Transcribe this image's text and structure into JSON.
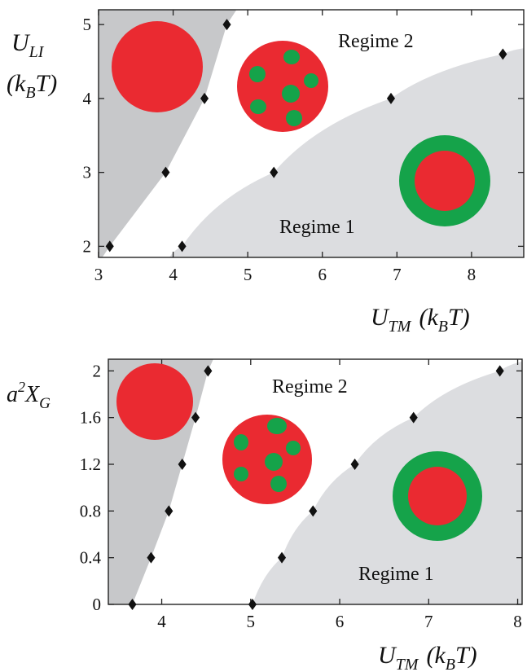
{
  "colors": {
    "region_dark": "#c7c8ca",
    "region_light": "#dcdde0",
    "red": "#ea2a31",
    "green": "#15a34a",
    "marker": "#111111",
    "axis": "#222222"
  },
  "chart_data": [
    {
      "type": "scatter",
      "xlabel": {
        "main": "U",
        "sub": "TM",
        "unit": "(k",
        "unit_sub": "B",
        "unit_end": "T)"
      },
      "ylabel": {
        "line1_main": "U",
        "line1_sub": "LI",
        "line2": "(k",
        "line2_sub": "B",
        "line2_end": "T)"
      },
      "xlim": [
        3,
        8.7
      ],
      "ylim": [
        1.85,
        5.2
      ],
      "xticks": [
        3,
        4,
        5,
        6,
        7,
        8
      ],
      "xtick_labels": [
        "3",
        "4",
        "5",
        "6",
        "7",
        "8"
      ],
      "yticks": [
        2,
        3,
        4,
        5
      ],
      "ytick_labels": [
        "2",
        "3",
        "4",
        "5"
      ],
      "regions": [
        {
          "name": "uniform",
          "icon": "red-filled-circle-icon",
          "boundary": [
            [
              3.05,
              1.85
            ],
            [
              3.15,
              2
            ],
            [
              3.9,
              3
            ],
            [
              4.42,
              4
            ],
            [
              4.72,
              5
            ],
            [
              4.85,
              5.2
            ]
          ]
        },
        {
          "name": "core-shell",
          "icon": "red-core-green-shell-icon",
          "boundary": [
            [
              3.95,
              1.85
            ],
            [
              4.12,
              2
            ],
            [
              5.35,
              3
            ],
            [
              6.92,
              4
            ],
            [
              8.42,
              4.6
            ],
            [
              8.7,
              4.68
            ]
          ]
        }
      ],
      "series": [
        {
          "x": [
            3.15,
            3.9,
            4.42,
            4.72
          ],
          "y": [
            2,
            3,
            4,
            5
          ]
        },
        {
          "x": [
            4.12,
            5.35,
            6.92,
            8.42
          ],
          "y": [
            2,
            3,
            4,
            4.6
          ]
        }
      ],
      "annotations": [
        "Regime 2",
        "Regime 1"
      ]
    },
    {
      "type": "scatter",
      "xlabel": {
        "main": "U",
        "sub": "TM",
        "unit": "(k",
        "unit_sub": "B",
        "unit_end": "T)"
      },
      "ylabel": {
        "main": "a",
        "sup": "2",
        "rest": "X",
        "sub": "G"
      },
      "xlim": [
        3.4,
        8.05
      ],
      "ylim": [
        0,
        2.1
      ],
      "xticks": [
        4,
        5,
        6,
        7,
        8
      ],
      "xtick_labels": [
        "4",
        "5",
        "6",
        "7",
        "8"
      ],
      "yticks": [
        0,
        0.4,
        0.8,
        1.2,
        1.6,
        2
      ],
      "ytick_labels": [
        "0",
        "0.4",
        "0.8",
        "1.2",
        "1.6",
        "2"
      ],
      "regions": [
        {
          "name": "uniform",
          "icon": "red-filled-circle-icon",
          "boundary": [
            [
              3.67,
              0
            ],
            [
              3.88,
              0.4
            ],
            [
              4.08,
              0.8
            ],
            [
              4.23,
              1.2
            ],
            [
              4.38,
              1.6
            ],
            [
              4.52,
              2
            ],
            [
              4.58,
              2.1
            ]
          ]
        },
        {
          "name": "core-shell",
          "icon": "red-core-green-shell-icon",
          "boundary": [
            [
              5.02,
              0
            ],
            [
              5.35,
              0.4
            ],
            [
              5.7,
              0.8
            ],
            [
              6.17,
              1.2
            ],
            [
              6.83,
              1.6
            ],
            [
              7.8,
              2
            ],
            [
              8.05,
              2.08
            ]
          ]
        }
      ],
      "series": [
        {
          "x": [
            3.67,
            3.88,
            4.08,
            4.23,
            4.38,
            4.52
          ],
          "y": [
            0,
            0.4,
            0.8,
            1.2,
            1.6,
            2
          ]
        },
        {
          "x": [
            5.02,
            5.35,
            5.7,
            6.17,
            6.83,
            7.8
          ],
          "y": [
            0,
            0.4,
            0.8,
            1.2,
            1.6,
            2
          ]
        }
      ],
      "annotations": [
        "Regime 2",
        "Regime 1"
      ]
    }
  ]
}
